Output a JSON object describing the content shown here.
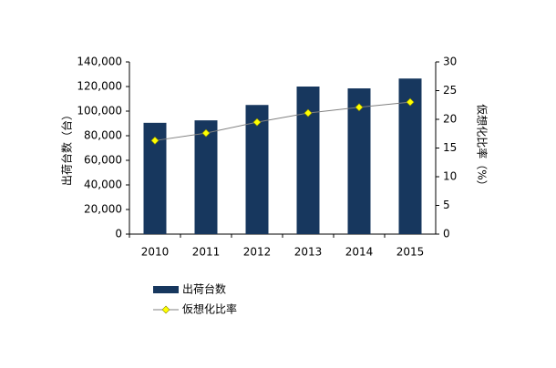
{
  "chart_data": {
    "type": "bar",
    "categories": [
      "2010",
      "2011",
      "2012",
      "2013",
      "2014",
      "2015"
    ],
    "series": [
      {
        "name": "出荷台数",
        "type": "bar",
        "color": "#17375e",
        "values": [
          90500,
          92500,
          105000,
          120000,
          118500,
          126500
        ]
      },
      {
        "name": "仮想化比率",
        "type": "line",
        "axis": "y2",
        "color": "#808080",
        "marker_color": "#ffff00",
        "values": [
          16.3,
          17.6,
          19.5,
          21.1,
          22.1,
          23.0
        ]
      }
    ],
    "ylabel": "出荷台数（台）",
    "y2label": "仮想化比率（%）",
    "ylim": [
      0,
      140000
    ],
    "yticks": [
      0,
      {
        "value": 20000,
        "label": "20,000"
      },
      {
        "value": 40000,
        "label": "40,000"
      },
      {
        "value": 60000,
        "label": "60,000"
      },
      {
        "value": 80000,
        "label": "80,000"
      },
      {
        "value": 100000,
        "label": "100,000"
      },
      {
        "value": 120000,
        "label": "120,000"
      },
      {
        "value": 140000,
        "label": "140,000"
      }
    ],
    "y2lim": [
      0,
      30
    ],
    "y2ticks": [
      0,
      5,
      10,
      15,
      20,
      25,
      30
    ],
    "legend": "bottom-left"
  }
}
